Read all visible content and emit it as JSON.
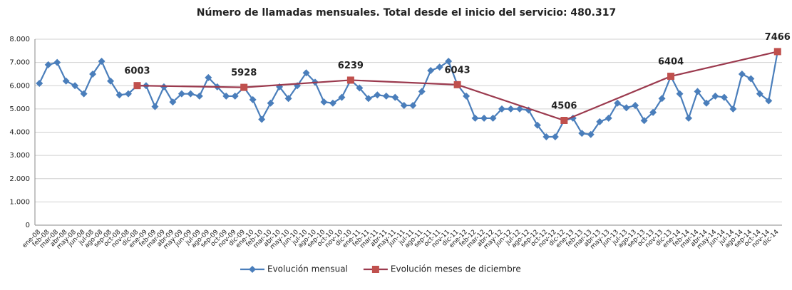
{
  "chart_data": {
    "type": "line",
    "title": "Número de llamadas mensuales. Total desde el inicio del servicio: 480.317",
    "categories": [
      "ene-08",
      "feb-08",
      "mar-08",
      "abr-08",
      "may-08",
      "jun-08",
      "jul-08",
      "ago-08",
      "sep-08",
      "oct-08",
      "nov-08",
      "dic-08",
      "ene-09",
      "feb-09",
      "mar-09",
      "abr-09",
      "may-09",
      "jun-09",
      "jul-09",
      "ago-09",
      "sep-09",
      "oct-09",
      "nov-09",
      "dic-09",
      "ene-10",
      "feb-10",
      "mar-10",
      "abr-10",
      "may-10",
      "jun-10",
      "jul-10",
      "ago-10",
      "sep-10",
      "oct-10",
      "nov-10",
      "dic-10",
      "ene-11",
      "feb-11",
      "mar-11",
      "abr-11",
      "may-11",
      "jun-11",
      "jul-11",
      "ago-11",
      "sep-11",
      "oct-11",
      "nov-11",
      "dic-11",
      "ene-12",
      "feb-12",
      "mar-12",
      "abr-12",
      "may-12",
      "jun-12",
      "jul-12",
      "ago-12",
      "sep-12",
      "oct-12",
      "nov-12",
      "dic-12",
      "ene-13",
      "feb-13",
      "mar-13",
      "abr-13",
      "may-13",
      "jun-13",
      "jul-13",
      "ago-13",
      "sep-13",
      "oct-13",
      "nov-13",
      "dic-13",
      "ene-14",
      "feb-14",
      "mar-14",
      "abr-14",
      "may-14",
      "jun-14",
      "jul-14",
      "ago-14",
      "sep-14",
      "oct-14",
      "nov-14",
      "dic-14"
    ],
    "series": [
      {
        "name": "Evolución mensual",
        "color": "#4a7ebb",
        "marker": "diamond",
        "values": [
          6100,
          6900,
          7000,
          6200,
          6000,
          5650,
          6500,
          7050,
          6200,
          5600,
          5650,
          6003,
          6000,
          5100,
          5950,
          5300,
          5650,
          5650,
          5550,
          6350,
          5950,
          5550,
          5550,
          5928,
          5400,
          4550,
          5250,
          5950,
          5450,
          6000,
          6550,
          6150,
          5300,
          5250,
          5500,
          6239,
          5900,
          5450,
          5600,
          5550,
          5500,
          5150,
          5150,
          5750,
          6650,
          6800,
          7050,
          6043,
          5550,
          4600,
          4600,
          4600,
          5000,
          5000,
          5000,
          4950,
          4300,
          3800,
          3800,
          4506,
          4600,
          3950,
          3900,
          4450,
          4600,
          5250,
          5050,
          5150,
          4500,
          4850,
          5450,
          6404,
          5650,
          4600,
          5750,
          5250,
          5550,
          5500,
          5000,
          6500,
          6300,
          5650,
          5350,
          7466
        ]
      },
      {
        "name": "Evolución meses de diciembre",
        "color": "#9b3a4e",
        "marker_color": "#c0504d",
        "marker": "square",
        "connect_gaps": true,
        "data_labels": true,
        "values": [
          null,
          null,
          null,
          null,
          null,
          null,
          null,
          null,
          null,
          null,
          null,
          6003,
          null,
          null,
          null,
          null,
          null,
          null,
          null,
          null,
          null,
          null,
          null,
          5928,
          null,
          null,
          null,
          null,
          null,
          null,
          null,
          null,
          null,
          null,
          null,
          6239,
          null,
          null,
          null,
          null,
          null,
          null,
          null,
          null,
          null,
          null,
          null,
          6043,
          null,
          null,
          null,
          null,
          null,
          null,
          null,
          null,
          null,
          null,
          null,
          4506,
          null,
          null,
          null,
          null,
          null,
          null,
          null,
          null,
          null,
          null,
          null,
          6404,
          null,
          null,
          null,
          null,
          null,
          null,
          null,
          null,
          null,
          null,
          null,
          7466
        ]
      }
    ],
    "ylim": [
      0,
      8000
    ],
    "yticks": [
      0,
      {
        "value": 1000,
        "label": "1.000"
      },
      {
        "value": 2000,
        "label": "2.000"
      },
      {
        "value": 3000,
        "label": "3.000"
      },
      {
        "value": 4000,
        "label": "4.000"
      },
      {
        "value": 5000,
        "label": "5.000"
      },
      {
        "value": 6000,
        "label": "6.000"
      },
      {
        "value": 7000,
        "label": "7.000"
      },
      {
        "value": 8000,
        "label": "8.000"
      }
    ],
    "grid": true,
    "legend": "bottom"
  }
}
